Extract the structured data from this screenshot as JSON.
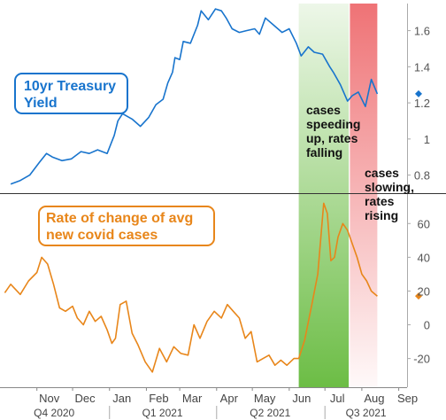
{
  "chart_data": {
    "type": "line",
    "grid": false,
    "colors": {
      "treasury": "#1874cd",
      "covid": "#e8861a",
      "green_band": "#6cbd45",
      "red_band": "#ee6b6e"
    },
    "x_months": [
      "Nov",
      "Dec",
      "Jan",
      "Feb",
      "Mar",
      "Apr",
      "May",
      "Jun",
      "Jul",
      "Aug",
      "Sep"
    ],
    "x_quarters": [
      "Q4 2020",
      "Q1 2021",
      "Q2 2021",
      "Q3 2021"
    ],
    "bands": [
      {
        "label": "cases speeding up, rates falling",
        "label_lines": [
          "cases",
          "speeding",
          "up, rates",
          "falling"
        ],
        "start": "2021-06-09",
        "end": "2021-07-21",
        "color": "green"
      },
      {
        "label": "cases slowing, rates rising",
        "label_lines": [
          "cases",
          "slowing,",
          "rates",
          "rising"
        ],
        "start": "2021-07-22",
        "end": "2021-08-14",
        "color": "red"
      }
    ],
    "panels": [
      {
        "name": "10yr Treasury Yield",
        "label_lines": [
          "10yr Treasury",
          "Yield"
        ],
        "yticks": [
          0.8,
          1.0,
          1.2,
          1.4,
          1.6
        ],
        "ytick_labels": [
          "0.8",
          "1",
          "1.2",
          "1.4",
          "1.6"
        ],
        "ylim": [
          0.7,
          1.75
        ],
        "last_value": 1.25,
        "dates": [
          "2020-10-10",
          "2020-10-18",
          "2020-10-26",
          "2020-11-03",
          "2020-11-09",
          "2020-11-14",
          "2020-11-22",
          "2020-11-30",
          "2020-12-08",
          "2020-12-15",
          "2020-12-22",
          "2020-12-30",
          "2021-01-05",
          "2021-01-08",
          "2021-01-12",
          "2021-01-20",
          "2021-01-27",
          "2021-02-03",
          "2021-02-09",
          "2021-02-15",
          "2021-02-19",
          "2021-02-23",
          "2021-02-25",
          "2021-03-01",
          "2021-03-04",
          "2021-03-10",
          "2021-03-16",
          "2021-03-19",
          "2021-03-25",
          "2021-03-31",
          "2021-04-05",
          "2021-04-09",
          "2021-04-14",
          "2021-04-20",
          "2021-04-26",
          "2021-05-03",
          "2021-05-07",
          "2021-05-12",
          "2021-05-19",
          "2021-05-26",
          "2021-06-01",
          "2021-06-07",
          "2021-06-11",
          "2021-06-17",
          "2021-06-22",
          "2021-06-29",
          "2021-07-05",
          "2021-07-08",
          "2021-07-14",
          "2021-07-20",
          "2021-07-24",
          "2021-07-29",
          "2021-08-04",
          "2021-08-09",
          "2021-08-14"
        ],
        "values": [
          0.75,
          0.77,
          0.8,
          0.87,
          0.92,
          0.9,
          0.88,
          0.89,
          0.93,
          0.92,
          0.94,
          0.92,
          1.02,
          1.1,
          1.14,
          1.11,
          1.07,
          1.12,
          1.19,
          1.22,
          1.31,
          1.37,
          1.45,
          1.44,
          1.54,
          1.53,
          1.63,
          1.71,
          1.66,
          1.72,
          1.71,
          1.67,
          1.61,
          1.59,
          1.6,
          1.61,
          1.58,
          1.67,
          1.63,
          1.59,
          1.61,
          1.53,
          1.46,
          1.51,
          1.48,
          1.47,
          1.4,
          1.37,
          1.3,
          1.21,
          1.24,
          1.26,
          1.18,
          1.33,
          1.25
        ]
      },
      {
        "name": "Rate of change of avg new covid cases",
        "label_lines": [
          "Rate of change of avg",
          "new covid cases"
        ],
        "yticks": [
          -20,
          0,
          20,
          40,
          60
        ],
        "ytick_labels": [
          "-20",
          "0",
          "20",
          "40",
          "60"
        ],
        "ylim": [
          -37,
          78
        ],
        "last_value": 17,
        "dates": [
          "2020-10-05",
          "2020-10-10",
          "2020-10-18",
          "2020-10-25",
          "2020-11-01",
          "2020-11-05",
          "2020-11-10",
          "2020-11-15",
          "2020-11-20",
          "2020-11-25",
          "2020-12-01",
          "2020-12-05",
          "2020-12-10",
          "2020-12-15",
          "2020-12-20",
          "2020-12-25",
          "2020-12-30",
          "2021-01-03",
          "2021-01-06",
          "2021-01-10",
          "2021-01-15",
          "2021-01-20",
          "2021-01-25",
          "2021-01-31",
          "2021-02-06",
          "2021-02-12",
          "2021-02-18",
          "2021-02-24",
          "2021-03-02",
          "2021-03-08",
          "2021-03-13",
          "2021-03-18",
          "2021-03-24",
          "2021-03-30",
          "2021-04-05",
          "2021-04-10",
          "2021-04-15",
          "2021-04-20",
          "2021-04-25",
          "2021-04-30",
          "2021-05-05",
          "2021-05-10",
          "2021-05-15",
          "2021-05-20",
          "2021-05-25",
          "2021-05-30",
          "2021-06-05",
          "2021-06-09",
          "2021-06-14",
          "2021-06-20",
          "2021-06-25",
          "2021-06-30",
          "2021-07-03",
          "2021-07-06",
          "2021-07-09",
          "2021-07-12",
          "2021-07-16",
          "2021-07-20",
          "2021-07-24",
          "2021-07-28",
          "2021-08-01",
          "2021-08-05",
          "2021-08-09",
          "2021-08-14"
        ],
        "values": [
          19,
          24,
          18,
          26,
          31,
          40,
          36,
          24,
          10,
          8,
          11,
          4,
          0,
          8,
          2,
          5,
          -3,
          -11,
          -8,
          12,
          14,
          -5,
          -12,
          -22,
          -28,
          -14,
          -22,
          -13,
          -17,
          -18,
          0,
          -8,
          2,
          8,
          4,
          12,
          8,
          4,
          -8,
          -4,
          -22,
          -20,
          -18,
          -24,
          -21,
          -24,
          -20,
          -20,
          -9,
          12,
          30,
          72,
          66,
          38,
          40,
          52,
          60,
          56,
          48,
          40,
          30,
          26,
          20,
          17
        ]
      }
    ]
  }
}
